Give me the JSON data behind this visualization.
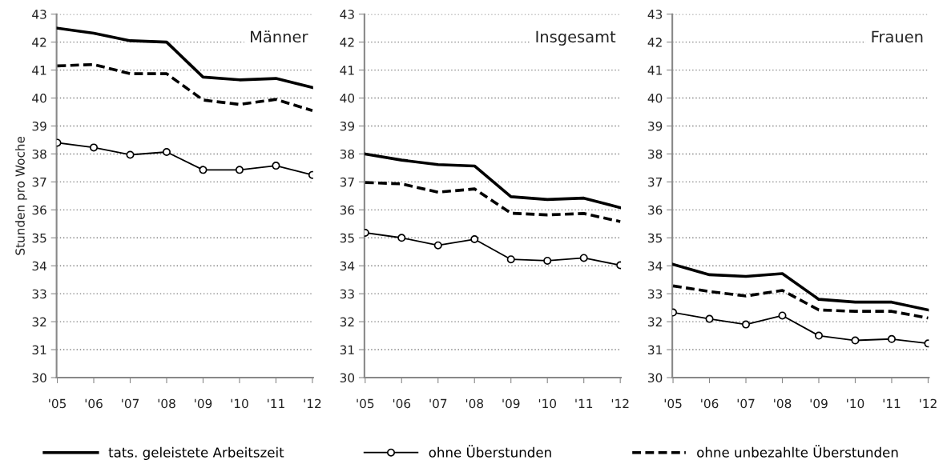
{
  "chart_data": [
    {
      "type": "line",
      "title": "Männer",
      "ylabel": "Stunden pro Woche",
      "categories": [
        "'05",
        "'06",
        "'07",
        "'08",
        "'09",
        "'10",
        "'11",
        "'12"
      ],
      "ylim": [
        30,
        43
      ],
      "yticks": [
        30,
        31,
        32,
        33,
        34,
        35,
        36,
        37,
        38,
        39,
        40,
        41,
        42,
        43
      ],
      "grid": "y",
      "legend": "bottom",
      "series": [
        {
          "name": "tats. geleistete Arbeitszeit",
          "color": "#000000",
          "line_style": "solid",
          "values": [
            42.5,
            42.32,
            42.05,
            42.0,
            40.75,
            40.65,
            40.7,
            40.38
          ]
        },
        {
          "name": "ohne Überstunden",
          "color": "#000000",
          "line_style": "solid",
          "marker": "circle",
          "values": [
            38.4,
            38.23,
            37.97,
            38.07,
            37.43,
            37.43,
            37.58,
            37.25
          ]
        },
        {
          "name": "ohne unbezahlte Überstunden",
          "color": "#000000",
          "line_style": "dashed",
          "values": [
            41.15,
            41.2,
            40.87,
            40.87,
            39.93,
            39.77,
            39.95,
            39.55
          ]
        }
      ]
    },
    {
      "type": "line",
      "title": "Insgesamt",
      "categories": [
        "'05",
        "'06",
        "'07",
        "'08",
        "'09",
        "'10",
        "'11",
        "'12"
      ],
      "ylim": [
        30,
        43
      ],
      "yticks": [
        30,
        31,
        32,
        33,
        34,
        35,
        36,
        37,
        38,
        39,
        40,
        41,
        42,
        43
      ],
      "grid": "y",
      "series": [
        {
          "color": "#000000",
          "line_style": "solid",
          "values": [
            38.0,
            37.78,
            37.62,
            37.57,
            36.47,
            36.37,
            36.42,
            36.08
          ]
        },
        {
          "color": "#000000",
          "line_style": "solid",
          "marker": "circle",
          "values": [
            35.18,
            35.0,
            34.73,
            34.95,
            34.23,
            34.18,
            34.28,
            34.02
          ]
        },
        {
          "color": "#000000",
          "line_style": "dashed",
          "values": [
            36.98,
            36.93,
            36.63,
            36.75,
            35.88,
            35.82,
            35.87,
            35.58
          ]
        }
      ]
    },
    {
      "type": "line",
      "title": "Frauen",
      "categories": [
        "'05",
        "'06",
        "'07",
        "'08",
        "'09",
        "'10",
        "'11",
        "'12"
      ],
      "ylim": [
        30,
        43
      ],
      "yticks": [
        30,
        31,
        32,
        33,
        34,
        35,
        36,
        37,
        38,
        39,
        40,
        41,
        42,
        43
      ],
      "grid": "y",
      "series": [
        {
          "color": "#000000",
          "line_style": "solid",
          "values": [
            34.05,
            33.68,
            33.62,
            33.72,
            32.8,
            32.7,
            32.7,
            32.42
          ]
        },
        {
          "color": "#000000",
          "line_style": "solid",
          "marker": "circle",
          "values": [
            32.33,
            32.1,
            31.9,
            32.22,
            31.5,
            31.33,
            31.38,
            31.22
          ]
        },
        {
          "color": "#000000",
          "line_style": "dashed",
          "values": [
            33.28,
            33.08,
            32.92,
            33.12,
            32.42,
            32.37,
            32.37,
            32.13
          ]
        }
      ]
    }
  ]
}
